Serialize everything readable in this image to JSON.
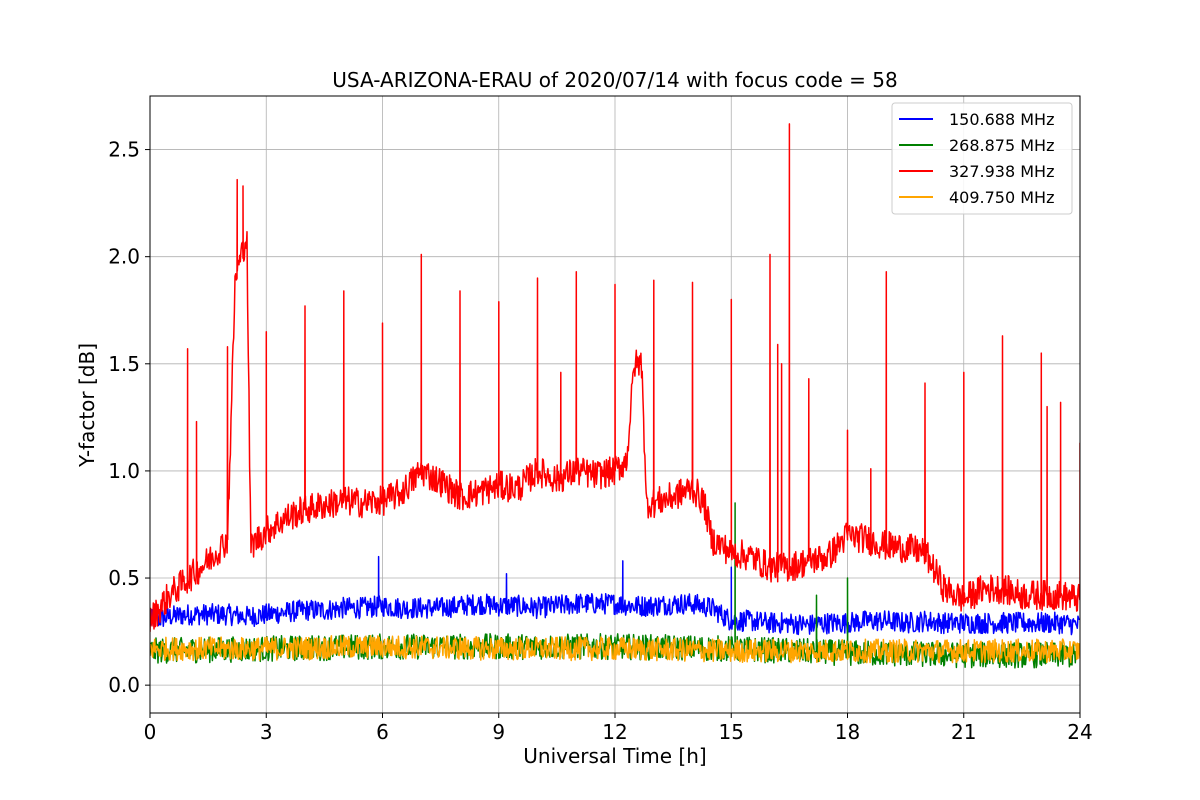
{
  "chart_data": {
    "type": "line",
    "title": "USA-ARIZONA-ERAU of 2020/07/14 with focus code = 58",
    "xlabel": "Universal Time [h]",
    "ylabel": "Y-factor [dB]",
    "xlim": [
      0,
      24
    ],
    "ylim": [
      -0.13,
      2.75
    ],
    "xticks": [
      0,
      3,
      6,
      9,
      12,
      15,
      18,
      21,
      24
    ],
    "xtick_labels": [
      "0",
      "3",
      "6",
      "9",
      "12",
      "15",
      "18",
      "21",
      "24"
    ],
    "yticks": [
      0.0,
      0.5,
      1.0,
      1.5,
      2.0,
      2.5
    ],
    "ytick_labels": [
      "0.0",
      "0.5",
      "1.0",
      "1.5",
      "2.0",
      "2.5"
    ],
    "grid": true,
    "legend_position": "top-right",
    "series": [
      {
        "name": "150.688 MHz",
        "color": "#0000ff",
        "x": [
          0,
          0.5,
          1,
          1.5,
          2,
          2.5,
          3,
          3.5,
          4,
          4.5,
          5,
          5.5,
          6,
          6.5,
          7,
          7.5,
          8,
          8.5,
          9,
          9.5,
          10,
          10.5,
          11,
          11.5,
          12,
          12.5,
          13,
          13.5,
          14,
          14.5,
          15,
          15.5,
          16,
          16.5,
          17,
          17.5,
          18,
          18.5,
          19,
          19.5,
          20,
          20.5,
          21,
          21.5,
          22,
          22.5,
          23,
          23.5,
          24
        ],
        "y": [
          0.3,
          0.32,
          0.33,
          0.33,
          0.33,
          0.32,
          0.33,
          0.34,
          0.35,
          0.35,
          0.36,
          0.36,
          0.37,
          0.36,
          0.36,
          0.36,
          0.37,
          0.38,
          0.37,
          0.37,
          0.36,
          0.37,
          0.38,
          0.38,
          0.38,
          0.37,
          0.37,
          0.38,
          0.38,
          0.36,
          0.3,
          0.3,
          0.29,
          0.29,
          0.28,
          0.29,
          0.29,
          0.3,
          0.3,
          0.29,
          0.3,
          0.29,
          0.29,
          0.29,
          0.29,
          0.29,
          0.29,
          0.29,
          0.28
        ],
        "noise": 0.05,
        "spikes": [
          [
            5.9,
            0.6
          ],
          [
            12.2,
            0.58
          ],
          [
            9.2,
            0.52
          ],
          [
            15.0,
            0.55
          ]
        ]
      },
      {
        "name": "268.875 MHz",
        "color": "#008000",
        "x": [
          0,
          3,
          6,
          9,
          12,
          15,
          18,
          21,
          24
        ],
        "y": [
          0.16,
          0.17,
          0.18,
          0.18,
          0.18,
          0.17,
          0.15,
          0.14,
          0.14
        ],
        "noise": 0.06,
        "spikes": [
          [
            15.1,
            0.85
          ],
          [
            18.0,
            0.5
          ],
          [
            17.2,
            0.42
          ]
        ]
      },
      {
        "name": "327.938 MHz",
        "color": "#ff0000",
        "x": [
          0,
          0.5,
          1,
          1.5,
          2,
          2.2,
          2.5,
          2.6,
          3,
          3.5,
          4,
          4.5,
          5,
          5.5,
          6,
          6.5,
          7,
          7.5,
          8,
          8.5,
          9,
          9.5,
          10,
          10.5,
          11,
          11.5,
          12,
          12.3,
          12.5,
          12.7,
          12.8,
          13,
          13.5,
          14,
          14.3,
          14.5,
          15,
          15.5,
          16,
          16.5,
          17,
          17.5,
          18,
          18.5,
          19,
          19.5,
          20,
          20.5,
          21,
          21.5,
          22,
          22.5,
          23,
          23.5,
          24
        ],
        "y": [
          0.3,
          0.42,
          0.5,
          0.58,
          0.68,
          1.9,
          2.1,
          0.65,
          0.72,
          0.78,
          0.82,
          0.84,
          0.86,
          0.85,
          0.86,
          0.9,
          1.0,
          0.95,
          0.88,
          0.9,
          0.93,
          0.92,
          1.0,
          0.96,
          1.0,
          0.98,
          1.0,
          1.05,
          1.5,
          1.5,
          0.85,
          0.85,
          0.88,
          0.92,
          0.85,
          0.68,
          0.62,
          0.6,
          0.55,
          0.55,
          0.58,
          0.6,
          0.7,
          0.68,
          0.65,
          0.64,
          0.62,
          0.45,
          0.4,
          0.45,
          0.45,
          0.42,
          0.42,
          0.42,
          0.4
        ],
        "noise": 0.07,
        "spikes": [
          [
            0.97,
            1.57
          ],
          [
            1.2,
            1.23
          ],
          [
            2.0,
            1.58
          ],
          [
            2.25,
            2.36
          ],
          [
            2.4,
            2.33
          ],
          [
            3.0,
            1.65
          ],
          [
            4.0,
            1.77
          ],
          [
            5.0,
            1.84
          ],
          [
            6.0,
            1.69
          ],
          [
            7.0,
            2.01
          ],
          [
            8.0,
            1.84
          ],
          [
            9.0,
            1.79
          ],
          [
            10.0,
            1.9
          ],
          [
            10.6,
            1.46
          ],
          [
            11.0,
            1.93
          ],
          [
            12.0,
            1.87
          ],
          [
            13.0,
            1.89
          ],
          [
            14.0,
            1.88
          ],
          [
            15.0,
            1.8
          ],
          [
            16.0,
            2.01
          ],
          [
            16.2,
            1.59
          ],
          [
            16.3,
            1.5
          ],
          [
            16.5,
            2.62
          ],
          [
            17.0,
            1.43
          ],
          [
            18.0,
            1.19
          ],
          [
            18.6,
            1.01
          ],
          [
            19.0,
            1.93
          ],
          [
            20.0,
            1.41
          ],
          [
            21.0,
            1.46
          ],
          [
            22.0,
            1.63
          ],
          [
            23.0,
            1.55
          ],
          [
            23.15,
            1.3
          ],
          [
            23.5,
            1.32
          ],
          [
            24.0,
            1.13
          ]
        ]
      },
      {
        "name": "409.750 MHz",
        "color": "#ffa500",
        "x": [
          0,
          3,
          6,
          9,
          12,
          15,
          18,
          21,
          24
        ],
        "y": [
          0.17,
          0.17,
          0.18,
          0.17,
          0.17,
          0.16,
          0.16,
          0.16,
          0.16
        ],
        "noise": 0.055,
        "spikes": []
      }
    ]
  }
}
